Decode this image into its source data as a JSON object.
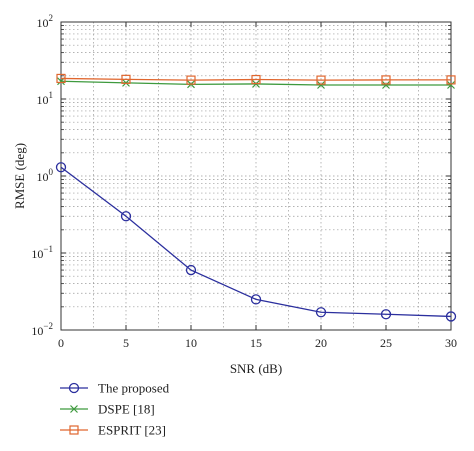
{
  "chart_data": {
    "type": "line",
    "xlabel": "SNR (dB)",
    "ylabel": "RMSE (deg)",
    "xscale": "linear",
    "yscale": "log",
    "xlim": [
      0,
      30
    ],
    "ylim": [
      0.01,
      100
    ],
    "x": [
      0,
      5,
      10,
      15,
      20,
      25,
      30
    ],
    "x_tick_labels": [
      "0",
      "5",
      "10",
      "15",
      "20",
      "25",
      "30"
    ],
    "y_ticks": [
      {
        "value": 0.01,
        "base": "10",
        "exp": "−2"
      },
      {
        "value": 0.1,
        "base": "10",
        "exp": "−1"
      },
      {
        "value": 1,
        "base": "10",
        "exp": "0"
      },
      {
        "value": 10,
        "base": "10",
        "exp": "1"
      },
      {
        "value": 100,
        "base": "10",
        "exp": "2"
      }
    ],
    "grid": true,
    "legend_position": "bottom-left, below plot",
    "series": [
      {
        "name": "The proposed",
        "marker": "circle",
        "color": "#2b2f9e",
        "values": [
          1.3,
          0.3,
          0.06,
          0.025,
          0.017,
          0.016,
          0.015
        ]
      },
      {
        "name": "DSPE [18]",
        "marker": "x",
        "color": "#3e9a3e",
        "values": [
          17,
          16.2,
          15.5,
          15.7,
          15.2,
          15.2,
          15.2
        ]
      },
      {
        "name": "ESPRIT [23]",
        "marker": "square",
        "color": "#e0662e",
        "values": [
          18.5,
          18,
          17.6,
          17.9,
          17.6,
          17.7,
          17.7
        ]
      }
    ]
  }
}
